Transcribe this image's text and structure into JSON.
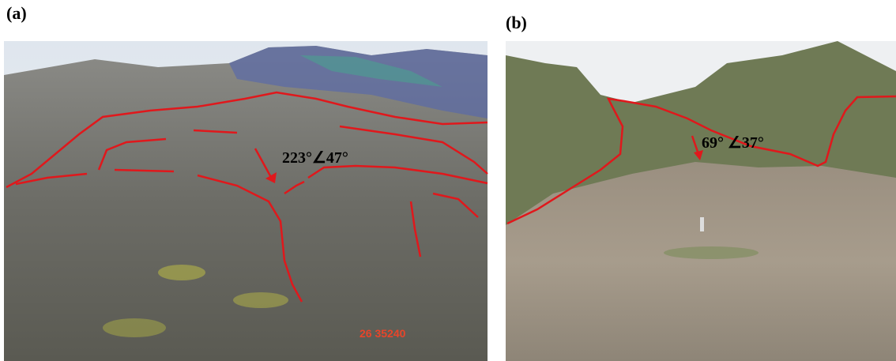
{
  "panels": [
    {
      "label": "(a)",
      "annotation": "223°∠47°",
      "stamp": "26 35240"
    },
    {
      "label": "(b)",
      "annotation": "69° ∠37°"
    }
  ]
}
